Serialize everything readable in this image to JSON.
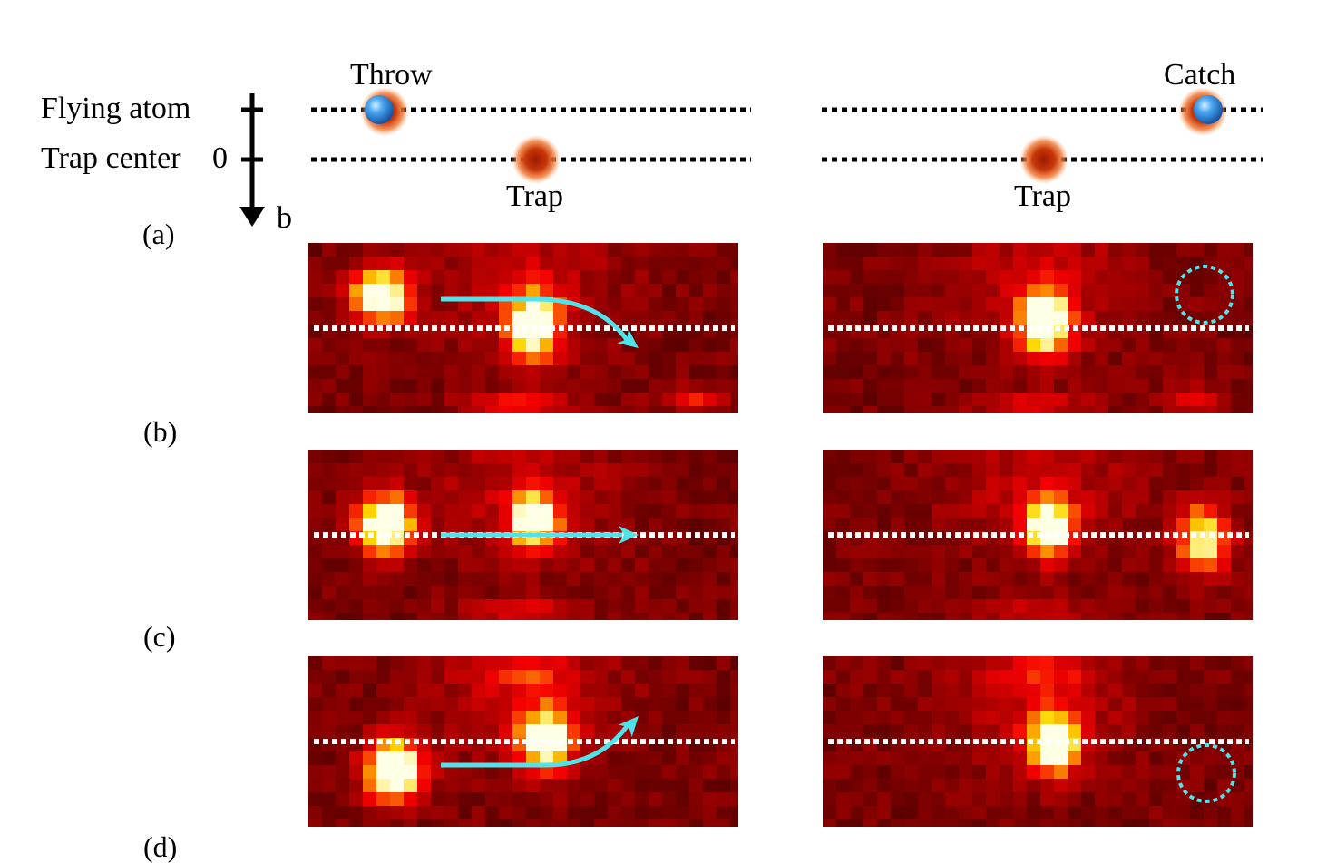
{
  "schematic": {
    "flying_atom_label": "Flying atom",
    "trap_center_label": "Trap center",
    "zero_label": "0",
    "axis_label": "b",
    "throw_label": "Throw",
    "catch_label": "Catch",
    "trap_label_left": "Trap",
    "trap_label_right": "Trap"
  },
  "panel_labels": [
    "(a)",
    "(b)",
    "(c)",
    "(d)"
  ],
  "colors": {
    "atom": "#2f8fe0",
    "trap": "#d94a10",
    "arrow": "#4fe3ea",
    "dotted_line": "#ffffff"
  },
  "rows": [
    {
      "label": "(b)",
      "trajectory": "deflected down",
      "caught": false
    },
    {
      "label": "(c)",
      "trajectory": "straight",
      "caught": true
    },
    {
      "label": "(d)",
      "trajectory": "deflected up",
      "caught": false
    }
  ]
}
